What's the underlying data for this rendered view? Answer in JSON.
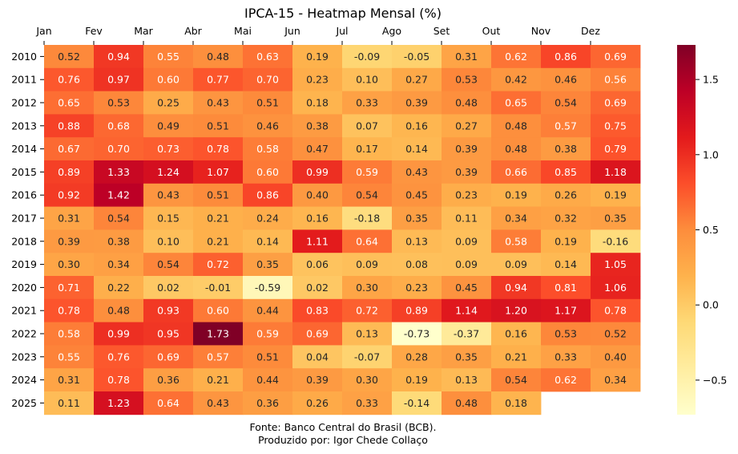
{
  "chart_data": {
    "type": "heatmap",
    "title": "IPCA-15 - Heatmap Mensal (%)",
    "columns": [
      "Jan",
      "Fev",
      "Mar",
      "Abr",
      "Mai",
      "Jun",
      "Jul",
      "Ago",
      "Set",
      "Out",
      "Nov",
      "Dez"
    ],
    "rows": [
      "2010",
      "2011",
      "2012",
      "2013",
      "2014",
      "2015",
      "2016",
      "2017",
      "2018",
      "2019",
      "2020",
      "2021",
      "2022",
      "2023",
      "2024",
      "2025"
    ],
    "values": [
      [
        0.52,
        0.94,
        0.55,
        0.48,
        0.63,
        0.19,
        -0.09,
        -0.05,
        0.31,
        0.62,
        0.86,
        0.69
      ],
      [
        0.76,
        0.97,
        0.6,
        0.77,
        0.7,
        0.23,
        0.1,
        0.27,
        0.53,
        0.42,
        0.46,
        0.56
      ],
      [
        0.65,
        0.53,
        0.25,
        0.43,
        0.51,
        0.18,
        0.33,
        0.39,
        0.48,
        0.65,
        0.54,
        0.69
      ],
      [
        0.88,
        0.68,
        0.49,
        0.51,
        0.46,
        0.38,
        0.07,
        0.16,
        0.27,
        0.48,
        0.57,
        0.75
      ],
      [
        0.67,
        0.7,
        0.73,
        0.78,
        0.58,
        0.47,
        0.17,
        0.14,
        0.39,
        0.48,
        0.38,
        0.79
      ],
      [
        0.89,
        1.33,
        1.24,
        1.07,
        0.6,
        0.99,
        0.59,
        0.43,
        0.39,
        0.66,
        0.85,
        1.18
      ],
      [
        0.92,
        1.42,
        0.43,
        0.51,
        0.86,
        0.4,
        0.54,
        0.45,
        0.23,
        0.19,
        0.26,
        0.19
      ],
      [
        0.31,
        0.54,
        0.15,
        0.21,
        0.24,
        0.16,
        -0.18,
        0.35,
        0.11,
        0.34,
        0.32,
        0.35
      ],
      [
        0.39,
        0.38,
        0.1,
        0.21,
        0.14,
        1.11,
        0.64,
        0.13,
        0.09,
        0.58,
        0.19,
        -0.16
      ],
      [
        0.3,
        0.34,
        0.54,
        0.72,
        0.35,
        0.06,
        0.09,
        0.08,
        0.09,
        0.09,
        0.14,
        1.05
      ],
      [
        0.71,
        0.22,
        0.02,
        -0.01,
        -0.59,
        0.02,
        0.3,
        0.23,
        0.45,
        0.94,
        0.81,
        1.06
      ],
      [
        0.78,
        0.48,
        0.93,
        0.6,
        0.44,
        0.83,
        0.72,
        0.89,
        1.14,
        1.2,
        1.17,
        0.78
      ],
      [
        0.58,
        0.99,
        0.95,
        1.73,
        0.59,
        0.69,
        0.13,
        -0.73,
        -0.37,
        0.16,
        0.53,
        0.52
      ],
      [
        0.55,
        0.76,
        0.69,
        0.57,
        0.51,
        0.04,
        -0.07,
        0.28,
        0.35,
        0.21,
        0.33,
        0.4
      ],
      [
        0.31,
        0.78,
        0.36,
        0.21,
        0.44,
        0.39,
        0.3,
        0.19,
        0.13,
        0.54,
        0.62,
        0.34
      ],
      [
        0.11,
        1.23,
        0.64,
        0.43,
        0.36,
        0.26,
        0.33,
        -0.14,
        0.48,
        0.18,
        null,
        null
      ]
    ],
    "colormap": "YlOrRd",
    "vmin": -0.73,
    "vmax": 1.73,
    "colorbar_ticks": [
      -0.5,
      0.0,
      0.5,
      1.0,
      1.5
    ],
    "colorbar_tick_labels": [
      "−0.5",
      "0.0",
      "0.5",
      "1.0",
      "1.5"
    ],
    "xaxis_position": "top",
    "annotation_format": "0.00"
  },
  "footer": {
    "line1": "Fonte: Banco Central do Brasil (BCB).",
    "line2": "Produzido por: Igor Chede Collaço"
  }
}
